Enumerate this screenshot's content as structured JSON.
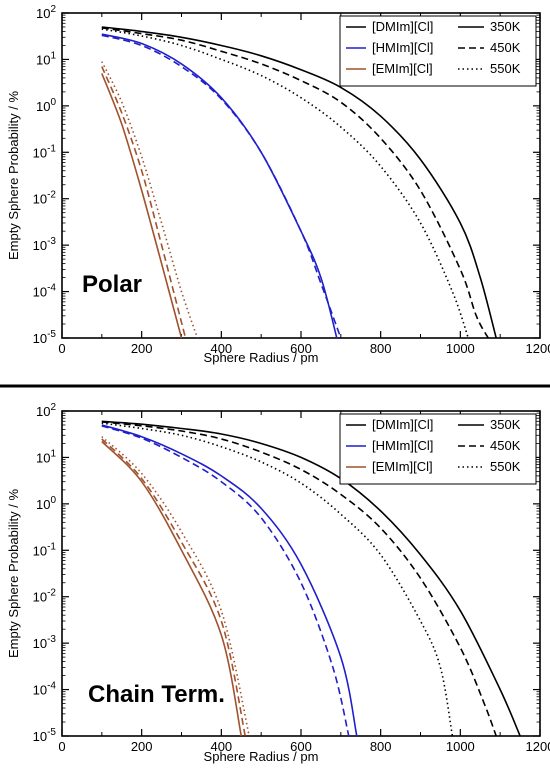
{
  "colors": {
    "DMIm": "#000000",
    "HMIm": "#1f1fcc",
    "EMIm": "#a0522d"
  },
  "chart_data": [
    {
      "type": "line",
      "title": "Polar",
      "xlabel": "Sphere Radius / pm",
      "ylabel": "Empty Sphere Probability / %",
      "xlim": [
        0,
        1200
      ],
      "ylim_log10": [
        -5,
        2
      ],
      "y_scale": "log",
      "x_ticks": [
        "0",
        "200",
        "400",
        "600",
        "800",
        "1000",
        "1200"
      ],
      "y_ticks": [
        "10^2",
        "10^1",
        "10^0",
        "10^-1",
        "10^-2",
        "10^-3",
        "10^-4",
        "10^-5"
      ],
      "legend": {
        "placement": "top-right",
        "systems": [
          "[DMIm][Cl]",
          "[HMIm][Cl]",
          "[EMIm][Cl]"
        ],
        "temperatures": [
          "350K",
          "450K",
          "550K"
        ]
      },
      "series": [
        {
          "name": "[DMIm][Cl] 350K",
          "system": "DMIm",
          "temp": "350K",
          "x": [
            100,
            200,
            300,
            400,
            500,
            600,
            700,
            800,
            900,
            1000,
            1050,
            1090
          ],
          "y": [
            50,
            40,
            30,
            20,
            12,
            6,
            2.5,
            0.6,
            0.07,
            0.003,
            0.0002,
            1e-05
          ]
        },
        {
          "name": "[DMIm][Cl] 450K",
          "system": "DMIm",
          "temp": "450K",
          "x": [
            100,
            200,
            300,
            400,
            500,
            600,
            700,
            800,
            900,
            1000,
            1040,
            1070
          ],
          "y": [
            48,
            36,
            26,
            15,
            8,
            3.5,
            1.2,
            0.2,
            0.015,
            0.0003,
            3e-05,
            1e-05
          ]
        },
        {
          "name": "[DMIm][Cl] 550K",
          "system": "DMIm",
          "temp": "550K",
          "x": [
            100,
            200,
            300,
            400,
            500,
            600,
            700,
            800,
            900,
            980,
            1020
          ],
          "y": [
            45,
            32,
            20,
            10,
            4.5,
            1.5,
            0.35,
            0.05,
            0.003,
            0.0001,
            1e-05
          ]
        },
        {
          "name": "[HMIm][Cl] 350K",
          "system": "HMIm",
          "temp": "350K",
          "x": [
            100,
            200,
            300,
            400,
            500,
            600,
            650,
            690
          ],
          "y": [
            35,
            22,
            8,
            1.5,
            0.1,
            0.002,
            0.0002,
            1e-05
          ]
        },
        {
          "name": "[HMIm][Cl] 450K",
          "system": "HMIm",
          "temp": "450K",
          "x": [
            100,
            200,
            300,
            400,
            500,
            600,
            650,
            700
          ],
          "y": [
            33,
            20,
            7,
            1.4,
            0.1,
            0.002,
            0.00015,
            1e-05
          ]
        },
        {
          "name": "[EMIm][Cl] 350K",
          "system": "EMIm",
          "temp": "350K",
          "x": [
            100,
            150,
            200,
            250,
            300
          ],
          "y": [
            5,
            0.4,
            0.015,
            0.0004,
            1e-05
          ]
        },
        {
          "name": "[EMIm][Cl] 450K",
          "system": "EMIm",
          "temp": "450K",
          "x": [
            100,
            150,
            200,
            250,
            310
          ],
          "y": [
            7,
            0.7,
            0.04,
            0.001,
            1e-05
          ]
        },
        {
          "name": "[EMIm][Cl] 550K",
          "system": "EMIm",
          "temp": "550K",
          "x": [
            100,
            150,
            200,
            250,
            300,
            340
          ],
          "y": [
            9,
            1.2,
            0.08,
            0.003,
            0.0001,
            1e-05
          ]
        }
      ]
    },
    {
      "type": "line",
      "title": "Chain Term.",
      "xlabel": "Sphere Radius / pm",
      "ylabel": "Empty Sphere Probability / %",
      "xlim": [
        0,
        1200
      ],
      "ylim_log10": [
        -5,
        2
      ],
      "y_scale": "log",
      "x_ticks": [
        "0",
        "200",
        "400",
        "600",
        "800",
        "1000",
        "1200"
      ],
      "y_ticks": [
        "10^2",
        "10^1",
        "10^0",
        "10^-1",
        "10^-2",
        "10^-3",
        "10^-4",
        "10^-5"
      ],
      "legend": {
        "placement": "top-right",
        "systems": [
          "[DMIm][Cl]",
          "[HMIm][Cl]",
          "[EMIm][Cl]"
        ],
        "temperatures": [
          "350K",
          "450K",
          "550K"
        ]
      },
      "series": [
        {
          "name": "[DMIm][Cl] 350K",
          "system": "DMIm",
          "temp": "350K",
          "x": [
            100,
            200,
            300,
            400,
            500,
            600,
            700,
            800,
            900,
            1000,
            1100,
            1150
          ],
          "y": [
            60,
            52,
            42,
            32,
            20,
            10,
            3.5,
            0.7,
            0.08,
            0.005,
            0.0001,
            1e-05
          ]
        },
        {
          "name": "[DMIm][Cl] 450K",
          "system": "DMIm",
          "temp": "450K",
          "x": [
            100,
            200,
            300,
            400,
            500,
            600,
            700,
            800,
            900,
            1000,
            1060,
            1090
          ],
          "y": [
            58,
            48,
            37,
            25,
            13,
            5.5,
            1.6,
            0.3,
            0.025,
            0.0008,
            5e-05,
            1e-05
          ]
        },
        {
          "name": "[DMIm][Cl] 550K",
          "system": "DMIm",
          "temp": "550K",
          "x": [
            100,
            200,
            300,
            400,
            500,
            600,
            700,
            800,
            900,
            950,
            980
          ],
          "y": [
            55,
            42,
            30,
            17,
            8,
            2.8,
            0.6,
            0.08,
            0.003,
            0.0003,
            1e-05
          ]
        },
        {
          "name": "[HMIm][Cl] 350K",
          "system": "HMIm",
          "temp": "350K",
          "x": [
            100,
            200,
            300,
            400,
            500,
            600,
            700,
            740
          ],
          "y": [
            50,
            28,
            12,
            4,
            0.8,
            0.05,
            0.0005,
            1e-05
          ]
        },
        {
          "name": "[HMIm][Cl] 450K",
          "system": "HMIm",
          "temp": "450K",
          "x": [
            100,
            200,
            300,
            400,
            500,
            600,
            680,
            720
          ],
          "y": [
            48,
            26,
            10,
            3,
            0.5,
            0.02,
            0.0003,
            1e-05
          ]
        },
        {
          "name": "[EMIm][Cl] 350K",
          "system": "EMIm",
          "temp": "350K",
          "x": [
            100,
            200,
            300,
            400,
            450
          ],
          "y": [
            22,
            3,
            0.1,
            0.0015,
            1e-05
          ]
        },
        {
          "name": "[EMIm][Cl] 450K",
          "system": "EMIm",
          "temp": "450K",
          "x": [
            100,
            200,
            300,
            400,
            460
          ],
          "y": [
            25,
            3.5,
            0.15,
            0.003,
            1e-05
          ]
        },
        {
          "name": "[EMIm][Cl] 550K",
          "system": "EMIm",
          "temp": "550K",
          "x": [
            100,
            200,
            300,
            400,
            470
          ],
          "y": [
            28,
            4.5,
            0.25,
            0.005,
            1e-05
          ]
        }
      ]
    }
  ]
}
